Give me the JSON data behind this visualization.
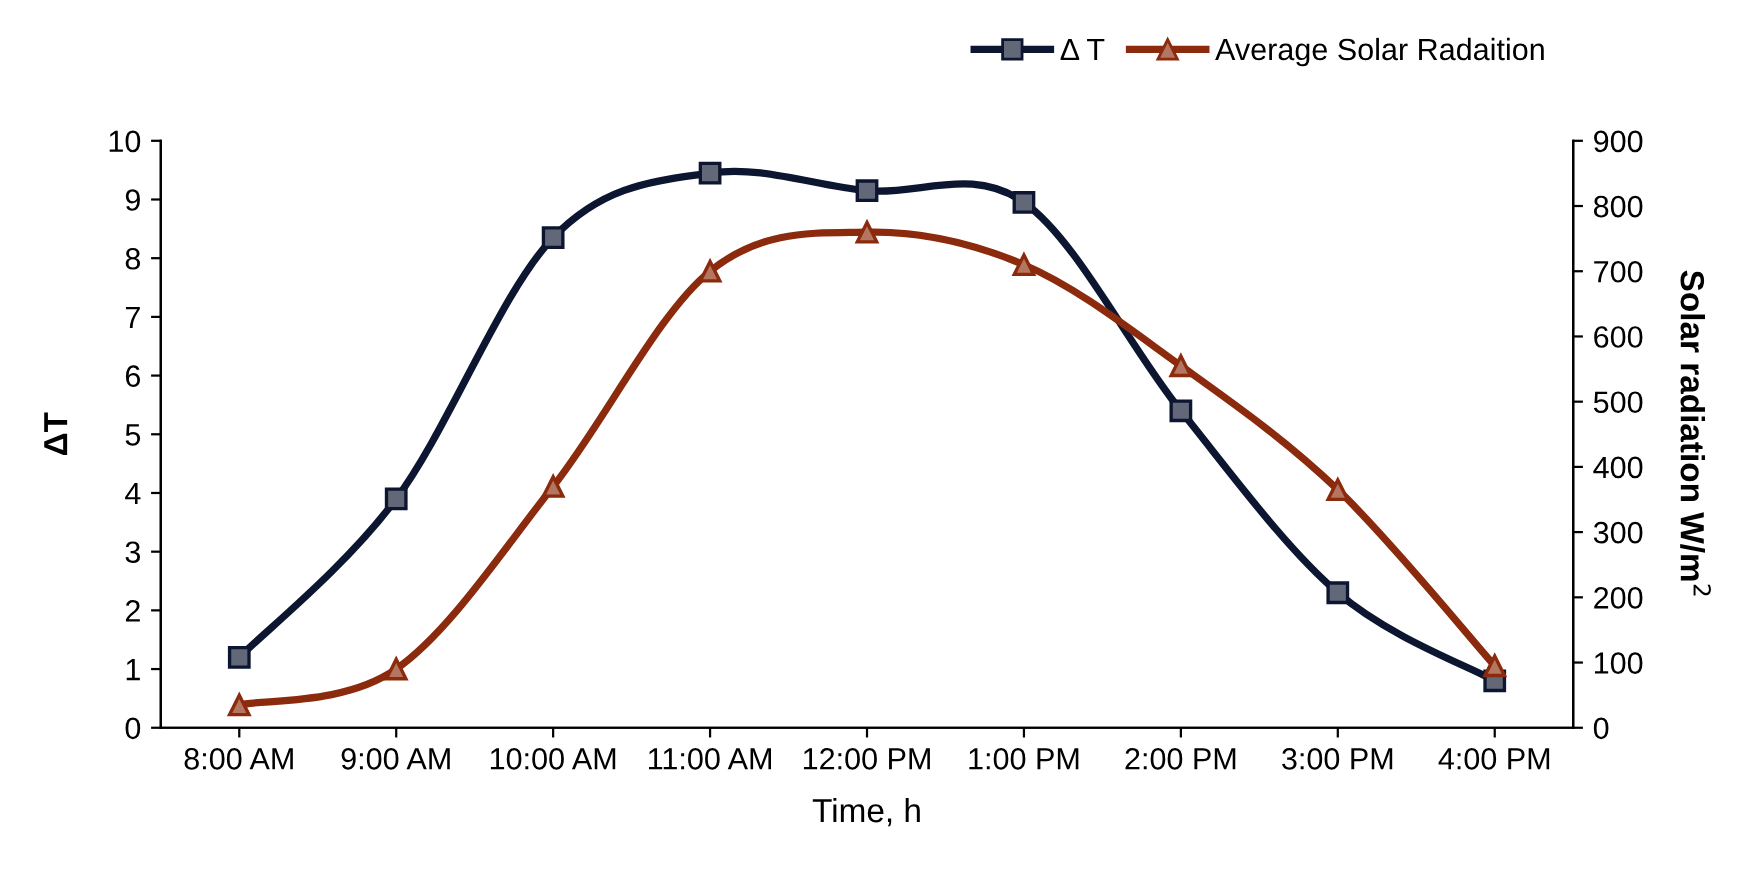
{
  "chart_data": {
    "type": "line",
    "categories": [
      "8:00 AM",
      "9:00 AM",
      "10:00 AM",
      "11:00 AM",
      "12:00 PM",
      "1:00 PM",
      "2:00 PM",
      "3:00 PM",
      "4:00 PM"
    ],
    "series": [
      {
        "name": "Δ T",
        "color": "#0d1630",
        "marker": "square",
        "values": [
          1.2,
          3.9,
          8.35,
          9.45,
          9.15,
          8.95,
          5.4,
          2.3,
          0.8
        ]
      },
      {
        "name": "Average Solar Radaition",
        "color": "#8b2a0c",
        "marker": "triangle",
        "axis": "y2",
        "values": [
          35,
          90,
          370,
          700,
          760,
          710,
          555,
          365,
          95
        ]
      }
    ],
    "xlabel": "Time, h",
    "ylabel": "ΔT",
    "y2label": "Solar radiation W/m$^{2}$",
    "ylim": [
      0,
      10
    ],
    "yticks": [
      0,
      1,
      2,
      3,
      4,
      5,
      6,
      7,
      8,
      9,
      10
    ],
    "y2lim": [
      0,
      900
    ],
    "y2ticks": [
      0,
      100,
      200,
      300,
      400,
      500,
      600,
      700,
      800,
      900
    ],
    "grid": false,
    "legend": "top right",
    "line_style": "solid"
  }
}
